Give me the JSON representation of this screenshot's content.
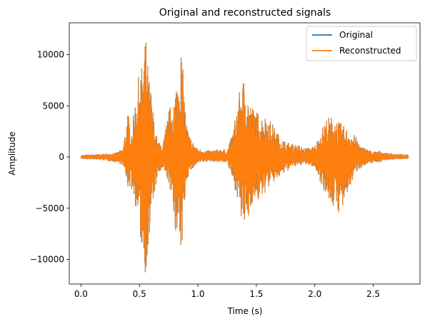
{
  "chart_data": {
    "type": "line",
    "title": "Original and reconstructed signals",
    "xlabel": "Time (s)",
    "ylabel": "Amplitude",
    "xlim": [
      -0.1,
      2.9
    ],
    "ylim": [
      -12400,
      13100
    ],
    "x_ticks": [
      0.0,
      0.5,
      1.0,
      1.5,
      2.0,
      2.5
    ],
    "x_tick_labels": [
      "0.0",
      "0.5",
      "1.0",
      "1.5",
      "2.0",
      "2.5"
    ],
    "y_ticks": [
      -10000,
      -5000,
      0,
      5000,
      10000
    ],
    "y_tick_labels": [
      "−10000",
      "−5000",
      "0",
      "5000",
      "10000"
    ],
    "grid": false,
    "legend": {
      "position": "top-right"
    },
    "series": [
      {
        "name": "Original",
        "color": "#1f77b4",
        "envelope": {
          "t": [
            0.0,
            0.05,
            0.2,
            0.3,
            0.36,
            0.4,
            0.43,
            0.47,
            0.5,
            0.53,
            0.55,
            0.58,
            0.6,
            0.63,
            0.66,
            0.7,
            0.75,
            0.8,
            0.83,
            0.86,
            0.88,
            0.9,
            0.93,
            1.0,
            1.1,
            1.2,
            1.25,
            1.3,
            1.34,
            1.37,
            1.4,
            1.43,
            1.46,
            1.5,
            1.55,
            1.6,
            1.65,
            1.7,
            1.75,
            1.8,
            1.85,
            1.9,
            1.95,
            2.0,
            2.05,
            2.1,
            2.15,
            2.2,
            2.25,
            2.3,
            2.35,
            2.4,
            2.45,
            2.5,
            2.55,
            2.6,
            2.7,
            2.8
          ],
          "max": [
            150,
            200,
            300,
            400,
            800,
            4500,
            2500,
            6000,
            8500,
            9000,
            12300,
            8000,
            6500,
            3000,
            1500,
            1200,
            4500,
            6000,
            8500,
            10900,
            7000,
            3500,
            2000,
            800,
            600,
            800,
            600,
            2500,
            5500,
            7000,
            8000,
            6000,
            5000,
            4500,
            4000,
            4000,
            3000,
            2000,
            1500,
            1300,
            1200,
            900,
            900,
            1100,
            2500,
            3800,
            4000,
            3500,
            3000,
            2500,
            2000,
            1000,
            800,
            500,
            600,
            400,
            300,
            200
          ],
          "min": [
            -150,
            -200,
            -300,
            -500,
            -800,
            -3000,
            -3000,
            -5000,
            -7000,
            -10500,
            -11300,
            -9500,
            -6000,
            -3500,
            -1800,
            -1200,
            -2500,
            -6500,
            -9000,
            -9700,
            -6000,
            -2500,
            -1500,
            -600,
            -400,
            -500,
            -500,
            -2500,
            -4000,
            -6500,
            -6800,
            -6500,
            -4500,
            -4500,
            -4000,
            -3000,
            -2500,
            -2000,
            -1500,
            -1000,
            -900,
            -700,
            -800,
            -1000,
            -2500,
            -3800,
            -4800,
            -5500,
            -5000,
            -3000,
            -1500,
            -1000,
            -800,
            -500,
            -500,
            -300,
            -200,
            -150
          ]
        }
      },
      {
        "name": "Reconstructed",
        "color": "#ff7f0e",
        "envelope": {
          "t": [
            0.0,
            0.05,
            0.2,
            0.3,
            0.36,
            0.4,
            0.43,
            0.47,
            0.5,
            0.53,
            0.55,
            0.58,
            0.6,
            0.63,
            0.66,
            0.7,
            0.75,
            0.8,
            0.83,
            0.86,
            0.88,
            0.9,
            0.93,
            1.0,
            1.1,
            1.2,
            1.25,
            1.3,
            1.34,
            1.37,
            1.4,
            1.43,
            1.46,
            1.5,
            1.55,
            1.6,
            1.65,
            1.7,
            1.75,
            1.8,
            1.85,
            1.9,
            1.95,
            2.0,
            2.05,
            2.1,
            2.15,
            2.2,
            2.25,
            2.3,
            2.35,
            2.4,
            2.45,
            2.5,
            2.55,
            2.6,
            2.7,
            2.8
          ],
          "max": [
            150,
            200,
            300,
            400,
            800,
            4500,
            2500,
            6000,
            8500,
            9000,
            12300,
            8000,
            6500,
            3000,
            1500,
            1200,
            4500,
            6000,
            8500,
            10900,
            7000,
            3500,
            2000,
            800,
            600,
            800,
            600,
            2500,
            5500,
            7000,
            8000,
            6000,
            5000,
            4500,
            4000,
            4000,
            3000,
            2000,
            1500,
            1300,
            1200,
            900,
            900,
            1100,
            2500,
            3800,
            4000,
            3500,
            3000,
            2500,
            2000,
            1000,
            800,
            500,
            600,
            400,
            300,
            200
          ],
          "min": [
            -150,
            -200,
            -300,
            -500,
            -800,
            -3000,
            -3000,
            -5000,
            -7000,
            -10500,
            -11300,
            -9500,
            -6000,
            -3500,
            -1800,
            -1200,
            -2500,
            -6500,
            -9000,
            -9700,
            -6000,
            -2500,
            -1500,
            -600,
            -400,
            -500,
            -500,
            -2500,
            -4000,
            -6500,
            -6800,
            -6500,
            -4500,
            -4500,
            -4000,
            -3000,
            -2500,
            -2000,
            -1500,
            -1000,
            -900,
            -700,
            -800,
            -1000,
            -2500,
            -3800,
            -4800,
            -5500,
            -5000,
            -3000,
            -1500,
            -1000,
            -800,
            -500,
            -500,
            -300,
            -200,
            -150
          ]
        }
      }
    ]
  }
}
